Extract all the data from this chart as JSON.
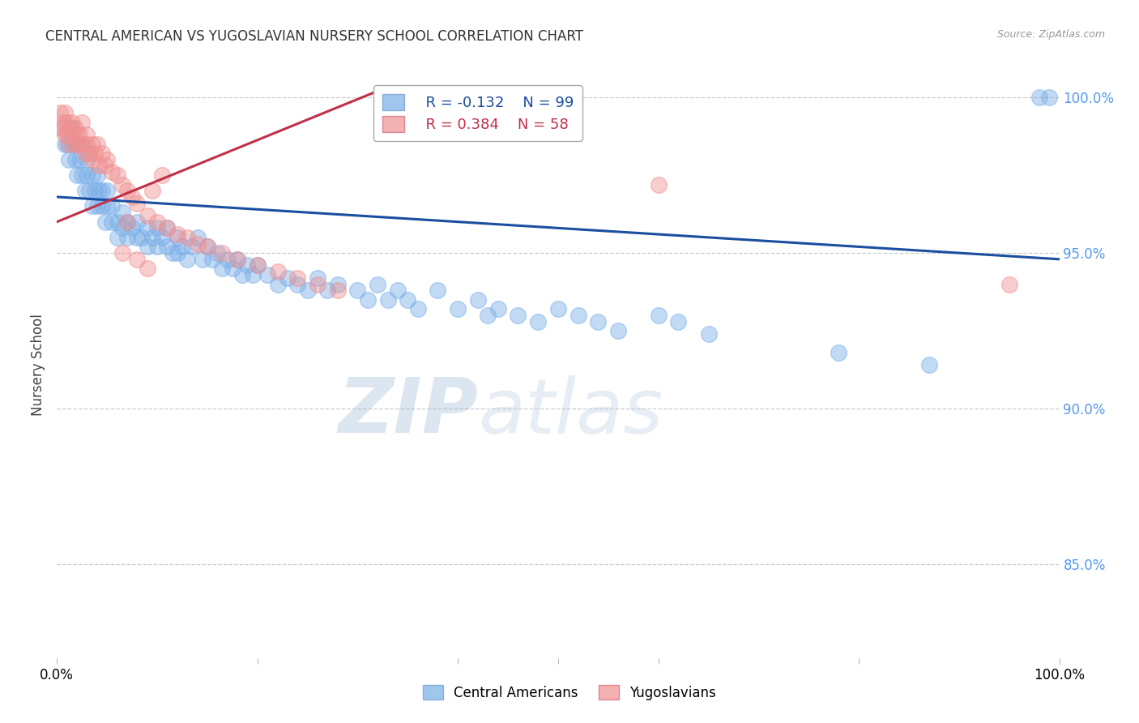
{
  "title": "CENTRAL AMERICAN VS YUGOSLAVIAN NURSERY SCHOOL CORRELATION CHART",
  "source": "Source: ZipAtlas.com",
  "ylabel": "Nursery School",
  "xlim": [
    0.0,
    1.0
  ],
  "ylim": [
    0.82,
    1.008
  ],
  "yticks": [
    0.85,
    0.9,
    0.95,
    1.0
  ],
  "ytick_labels": [
    "85.0%",
    "90.0%",
    "95.0%",
    "100.0%"
  ],
  "watermark_zip": "ZIP",
  "watermark_atlas": "atlas",
  "legend_r_blue": "-0.132",
  "legend_n_blue": "99",
  "legend_r_pink": "0.384",
  "legend_n_pink": "58",
  "blue_color": "#7aaee8",
  "pink_color": "#f09090",
  "trendline_blue": "#1a4fa0",
  "trendline_pink": "#c0304a",
  "blue_scatter_x": [
    0.005,
    0.008,
    0.01,
    0.012,
    0.015,
    0.015,
    0.018,
    0.02,
    0.02,
    0.022,
    0.025,
    0.025,
    0.028,
    0.03,
    0.03,
    0.032,
    0.035,
    0.035,
    0.038,
    0.04,
    0.04,
    0.042,
    0.045,
    0.045,
    0.048,
    0.05,
    0.05,
    0.055,
    0.055,
    0.06,
    0.06,
    0.065,
    0.065,
    0.07,
    0.07,
    0.075,
    0.08,
    0.08,
    0.085,
    0.09,
    0.09,
    0.095,
    0.1,
    0.1,
    0.105,
    0.11,
    0.11,
    0.115,
    0.12,
    0.12,
    0.125,
    0.13,
    0.135,
    0.14,
    0.145,
    0.15,
    0.155,
    0.16,
    0.165,
    0.17,
    0.175,
    0.18,
    0.185,
    0.19,
    0.195,
    0.2,
    0.21,
    0.22,
    0.23,
    0.24,
    0.25,
    0.26,
    0.27,
    0.28,
    0.3,
    0.31,
    0.32,
    0.33,
    0.34,
    0.35,
    0.36,
    0.38,
    0.4,
    0.42,
    0.43,
    0.44,
    0.46,
    0.48,
    0.5,
    0.52,
    0.54,
    0.56,
    0.6,
    0.62,
    0.65,
    0.78,
    0.87,
    0.98,
    0.99
  ],
  "blue_scatter_y": [
    0.99,
    0.985,
    0.985,
    0.98,
    0.99,
    0.985,
    0.98,
    0.985,
    0.975,
    0.98,
    0.975,
    0.985,
    0.97,
    0.975,
    0.98,
    0.97,
    0.975,
    0.965,
    0.97,
    0.975,
    0.965,
    0.97,
    0.965,
    0.97,
    0.96,
    0.965,
    0.97,
    0.96,
    0.965,
    0.96,
    0.955,
    0.958,
    0.963,
    0.955,
    0.96,
    0.958,
    0.955,
    0.96,
    0.955,
    0.958,
    0.952,
    0.955,
    0.958,
    0.952,
    0.955,
    0.952,
    0.958,
    0.95,
    0.955,
    0.95,
    0.952,
    0.948,
    0.952,
    0.955,
    0.948,
    0.952,
    0.948,
    0.95,
    0.945,
    0.948,
    0.945,
    0.948,
    0.943,
    0.946,
    0.943,
    0.946,
    0.943,
    0.94,
    0.942,
    0.94,
    0.938,
    0.942,
    0.938,
    0.94,
    0.938,
    0.935,
    0.94,
    0.935,
    0.938,
    0.935,
    0.932,
    0.938,
    0.932,
    0.935,
    0.93,
    0.932,
    0.93,
    0.928,
    0.932,
    0.93,
    0.928,
    0.925,
    0.93,
    0.928,
    0.924,
    0.918,
    0.914,
    1.0,
    1.0
  ],
  "pink_scatter_x": [
    0.003,
    0.005,
    0.006,
    0.008,
    0.008,
    0.01,
    0.01,
    0.012,
    0.012,
    0.015,
    0.015,
    0.018,
    0.018,
    0.02,
    0.02,
    0.022,
    0.025,
    0.025,
    0.028,
    0.03,
    0.03,
    0.032,
    0.035,
    0.035,
    0.038,
    0.04,
    0.042,
    0.045,
    0.048,
    0.05,
    0.055,
    0.06,
    0.065,
    0.07,
    0.075,
    0.08,
    0.09,
    0.1,
    0.11,
    0.12,
    0.13,
    0.14,
    0.15,
    0.165,
    0.18,
    0.2,
    0.22,
    0.24,
    0.26,
    0.28,
    0.105,
    0.07,
    0.6,
    0.065,
    0.08,
    0.09,
    0.095,
    0.95
  ],
  "pink_scatter_y": [
    0.995,
    0.99,
    0.992,
    0.988,
    0.995,
    0.992,
    0.988,
    0.985,
    0.99,
    0.992,
    0.988,
    0.985,
    0.99,
    0.988,
    0.985,
    0.988,
    0.985,
    0.992,
    0.982,
    0.985,
    0.988,
    0.982,
    0.985,
    0.98,
    0.982,
    0.985,
    0.978,
    0.982,
    0.978,
    0.98,
    0.976,
    0.975,
    0.972,
    0.97,
    0.968,
    0.966,
    0.962,
    0.96,
    0.958,
    0.956,
    0.955,
    0.953,
    0.952,
    0.95,
    0.948,
    0.946,
    0.944,
    0.942,
    0.94,
    0.938,
    0.975,
    0.96,
    0.972,
    0.95,
    0.948,
    0.945,
    0.97,
    0.94
  ],
  "blue_trendline_x": [
    0.0,
    1.0
  ],
  "blue_trendline_y": [
    0.968,
    0.948
  ],
  "pink_trendline_x": [
    0.0,
    0.32
  ],
  "pink_trendline_y": [
    0.96,
    1.002
  ]
}
